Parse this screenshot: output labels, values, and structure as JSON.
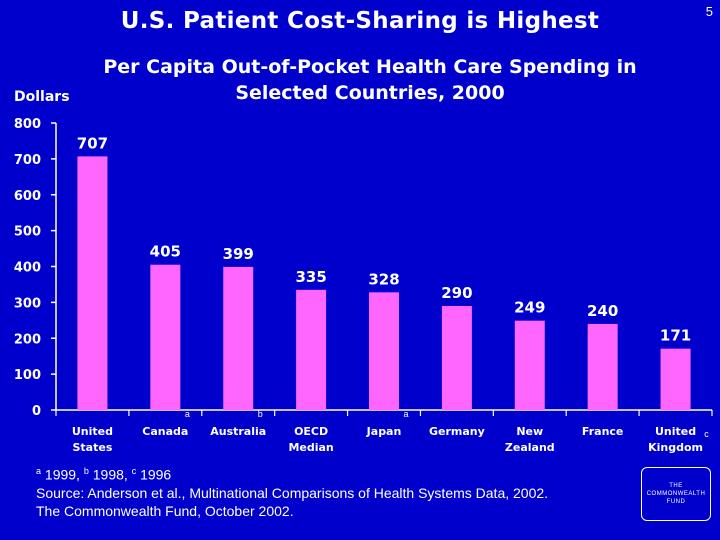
{
  "slide_number": "5",
  "title": "U.S. Patient Cost-Sharing is Highest",
  "chart_data": {
    "type": "bar",
    "title_line1": "Per Capita Out-of-Pocket Health Care Spending in",
    "title_line2": "Selected Countries, 2000",
    "ylabel": "Dollars",
    "ylim": [
      0,
      800
    ],
    "yticks": [
      0,
      100,
      200,
      300,
      400,
      500,
      600,
      700,
      800
    ],
    "categories": [
      {
        "line1": "United",
        "line2": "States",
        "note": ""
      },
      {
        "line1": "Canada",
        "line2": "",
        "note": "a"
      },
      {
        "line1": "Australia",
        "line2": "",
        "note": "b"
      },
      {
        "line1": "OECD",
        "line2": "Median",
        "note": ""
      },
      {
        "line1": "Japan",
        "line2": "",
        "note": "a"
      },
      {
        "line1": "Germany",
        "line2": "",
        "note": ""
      },
      {
        "line1": "New",
        "line2": "Zealand",
        "note": ""
      },
      {
        "line1": "France",
        "line2": "",
        "note": ""
      },
      {
        "line1": "United",
        "line2": "Kingdom",
        "note": "c"
      }
    ],
    "values": [
      707,
      405,
      399,
      335,
      328,
      290,
      249,
      240,
      171
    ],
    "value_labels": [
      "707",
      "405",
      "399",
      "335",
      "328",
      "290",
      "249",
      "240",
      "171"
    ],
    "bar_color": "#FF66FF"
  },
  "notes": {
    "footnote_a": "a",
    "footnote_a_text": " 1999, ",
    "footnote_b": "b",
    "footnote_b_text": " 1998, ",
    "footnote_c": "c",
    "footnote_c_text": " 1996",
    "source": "Source: Anderson et al., Multinational Comparisons of Health Systems Data, 2002.",
    "publisher": "The Commonwealth Fund, October 2002."
  },
  "logo": {
    "line1": "THE",
    "line2": "COMMONWEALTH",
    "line3": "FUND"
  }
}
